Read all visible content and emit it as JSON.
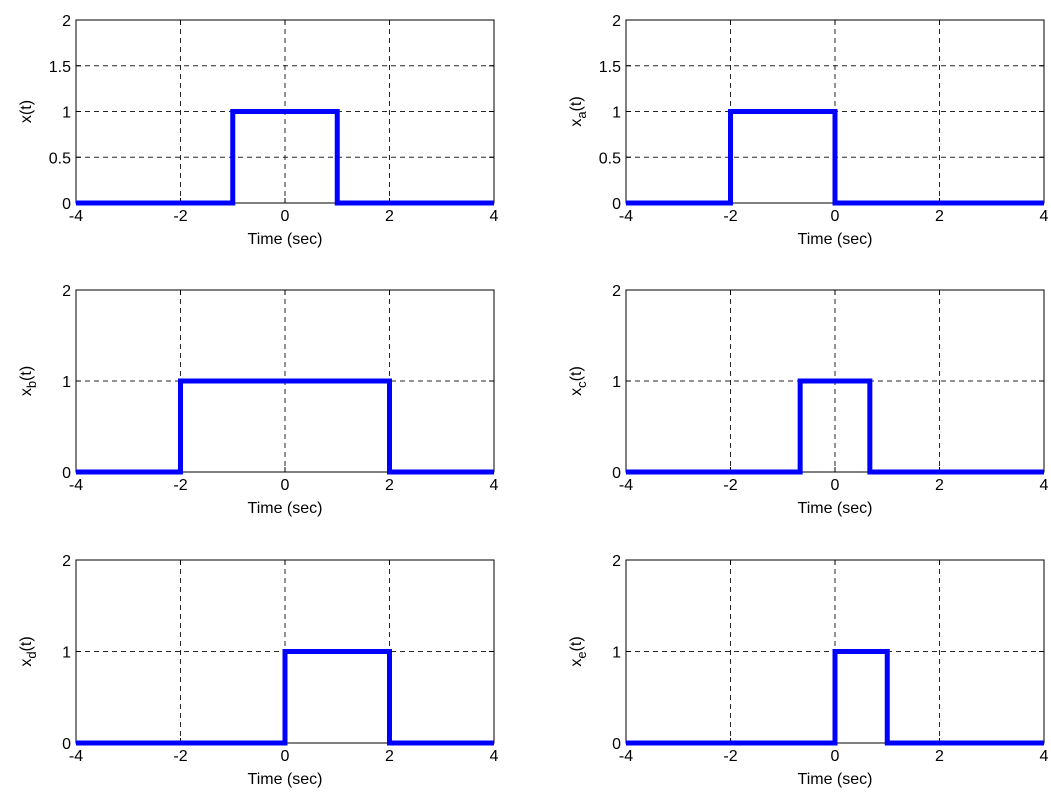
{
  "colors": {
    "signal": "#0000ff",
    "grid": "#000000",
    "background": "#ffffff"
  },
  "chart_data": [
    {
      "type": "line",
      "title": "",
      "xlabel": "Time (sec)",
      "ylabel": {
        "base": "x",
        "sub": "",
        "suffix": "(t)"
      },
      "xlim": [
        -4,
        4
      ],
      "ylim": [
        0,
        2
      ],
      "xticks": [
        "-4",
        "-2",
        "0",
        "2",
        "4"
      ],
      "yticks": [
        "0",
        "0.5",
        "1",
        "1.5",
        "2"
      ],
      "grid": true,
      "series": [
        {
          "x": [
            -4,
            -1,
            -1,
            1,
            1,
            4
          ],
          "y": [
            0,
            0,
            1,
            1,
            0,
            0
          ]
        }
      ]
    },
    {
      "type": "line",
      "title": "",
      "xlabel": "Time (sec)",
      "ylabel": {
        "base": "x",
        "sub": "a",
        "suffix": "(t)"
      },
      "xlim": [
        -4,
        4
      ],
      "ylim": [
        0,
        2
      ],
      "xticks": [
        "-4",
        "-2",
        "0",
        "2",
        "4"
      ],
      "yticks": [
        "0",
        "0.5",
        "1",
        "1.5",
        "2"
      ],
      "grid": true,
      "series": [
        {
          "x": [
            -4,
            -2,
            -2,
            0,
            0,
            4
          ],
          "y": [
            0,
            0,
            1,
            1,
            0,
            0
          ]
        }
      ]
    },
    {
      "type": "line",
      "title": "",
      "xlabel": "Time (sec)",
      "ylabel": {
        "base": "x",
        "sub": "b",
        "suffix": "(t)"
      },
      "xlim": [
        -4,
        4
      ],
      "ylim": [
        0,
        2
      ],
      "xticks": [
        "-4",
        "-2",
        "0",
        "2",
        "4"
      ],
      "yticks": [
        "0",
        "1",
        "2"
      ],
      "grid": true,
      "series": [
        {
          "x": [
            -4,
            -2,
            -2,
            2,
            2,
            4
          ],
          "y": [
            0,
            0,
            1,
            1,
            0,
            0
          ]
        }
      ]
    },
    {
      "type": "line",
      "title": "",
      "xlabel": "Time (sec)",
      "ylabel": {
        "base": "x",
        "sub": "c",
        "suffix": "(t)"
      },
      "xlim": [
        -4,
        4
      ],
      "ylim": [
        0,
        2
      ],
      "xticks": [
        "-4",
        "-2",
        "0",
        "2",
        "4"
      ],
      "yticks": [
        "0",
        "1",
        "2"
      ],
      "grid": true,
      "series": [
        {
          "x": [
            -4,
            -0.667,
            -0.667,
            0.667,
            0.667,
            4
          ],
          "y": [
            0,
            0,
            1,
            1,
            0,
            0
          ]
        }
      ]
    },
    {
      "type": "line",
      "title": "",
      "xlabel": "Time (sec)",
      "ylabel": {
        "base": "x",
        "sub": "d",
        "suffix": "(t)"
      },
      "xlim": [
        -4,
        4
      ],
      "ylim": [
        0,
        2
      ],
      "xticks": [
        "-4",
        "-2",
        "0",
        "2",
        "4"
      ],
      "yticks": [
        "0",
        "1",
        "2"
      ],
      "grid": true,
      "series": [
        {
          "x": [
            -4,
            0,
            0,
            2,
            2,
            4
          ],
          "y": [
            0,
            0,
            1,
            1,
            0,
            0
          ]
        }
      ]
    },
    {
      "type": "line",
      "title": "",
      "xlabel": "Time (sec)",
      "ylabel": {
        "base": "x",
        "sub": "e",
        "suffix": "(t)"
      },
      "xlim": [
        -4,
        4
      ],
      "ylim": [
        0,
        2
      ],
      "xticks": [
        "-4",
        "-2",
        "0",
        "2",
        "4"
      ],
      "yticks": [
        "0",
        "1",
        "2"
      ],
      "grid": true,
      "series": [
        {
          "x": [
            -4,
            0,
            0,
            1,
            1,
            4
          ],
          "y": [
            0,
            0,
            1,
            1,
            0,
            0
          ]
        }
      ]
    }
  ]
}
